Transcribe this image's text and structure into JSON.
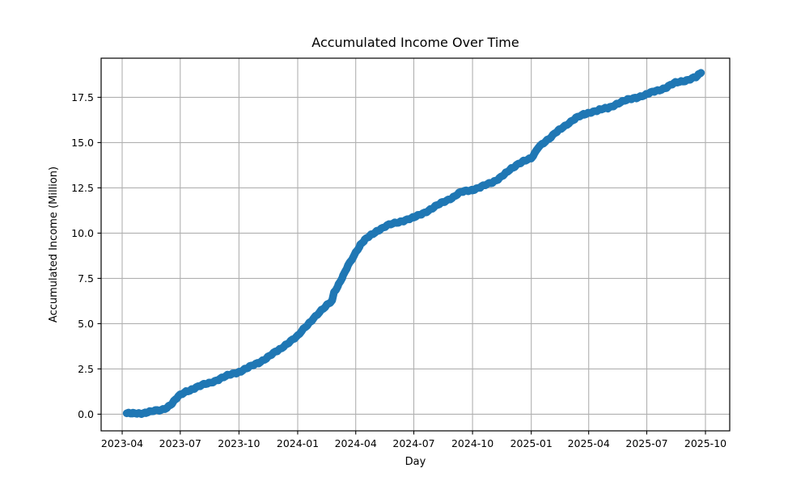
{
  "chart_data": {
    "type": "line",
    "title": "Accumulated Income Over Time",
    "xlabel": "Day",
    "ylabel": "Accumulated Income (Million)",
    "grid": true,
    "legend": "none",
    "style": {
      "line_color": "#1f77b4",
      "line_width": 9.5,
      "grid_color": "#b0b0b0",
      "axis_color": "#000000",
      "background": "#ffffff"
    },
    "x_axis": {
      "min": "2023-02-27",
      "max": "2025-11-08",
      "ticks": [
        {
          "date": "2023-04-01",
          "label": "2023-04"
        },
        {
          "date": "2023-07-01",
          "label": "2023-07"
        },
        {
          "date": "2023-10-01",
          "label": "2023-10"
        },
        {
          "date": "2024-01-01",
          "label": "2024-01"
        },
        {
          "date": "2024-04-01",
          "label": "2024-04"
        },
        {
          "date": "2024-07-01",
          "label": "2024-07"
        },
        {
          "date": "2024-10-01",
          "label": "2024-10"
        },
        {
          "date": "2025-01-01",
          "label": "2025-01"
        },
        {
          "date": "2025-04-01",
          "label": "2025-04"
        },
        {
          "date": "2025-07-01",
          "label": "2025-07"
        },
        {
          "date": "2025-10-01",
          "label": "2025-10"
        }
      ]
    },
    "y_axis": {
      "min": -0.92,
      "max": 19.66,
      "ticks": [
        {
          "value": 0.0,
          "label": "0.0"
        },
        {
          "value": 2.5,
          "label": "2.5"
        },
        {
          "value": 5.0,
          "label": "5.0"
        },
        {
          "value": 7.5,
          "label": "7.5"
        },
        {
          "value": 10.0,
          "label": "10.0"
        },
        {
          "value": 12.5,
          "label": "12.5"
        },
        {
          "value": 15.0,
          "label": "15.0"
        },
        {
          "value": 17.5,
          "label": "17.5"
        }
      ]
    },
    "series": [
      {
        "name": "Accumulated Income",
        "points": [
          [
            "2023-04-08",
            0.05
          ],
          [
            "2023-04-18",
            0.02
          ],
          [
            "2023-04-28",
            0.05
          ],
          [
            "2023-05-08",
            0.1
          ],
          [
            "2023-05-20",
            0.16
          ],
          [
            "2023-06-01",
            0.22
          ],
          [
            "2023-06-10",
            0.38
          ],
          [
            "2023-06-18",
            0.6
          ],
          [
            "2023-06-25",
            0.85
          ],
          [
            "2023-07-01",
            1.05
          ],
          [
            "2023-07-10",
            1.25
          ],
          [
            "2023-07-20",
            1.4
          ],
          [
            "2023-08-01",
            1.55
          ],
          [
            "2023-08-15",
            1.72
          ],
          [
            "2023-09-01",
            1.95
          ],
          [
            "2023-09-15",
            2.15
          ],
          [
            "2023-10-01",
            2.35
          ],
          [
            "2023-10-15",
            2.55
          ],
          [
            "2023-11-01",
            2.85
          ],
          [
            "2023-11-15",
            3.15
          ],
          [
            "2023-12-01",
            3.5
          ],
          [
            "2023-12-15",
            3.9
          ],
          [
            "2024-01-01",
            4.3
          ],
          [
            "2024-01-10",
            4.7
          ],
          [
            "2024-01-20",
            5.1
          ],
          [
            "2024-02-01",
            5.5
          ],
          [
            "2024-02-10",
            5.8
          ],
          [
            "2024-02-18",
            6.1
          ],
          [
            "2024-02-24",
            6.3
          ],
          [
            "2024-02-27",
            6.75
          ],
          [
            "2024-03-05",
            7.15
          ],
          [
            "2024-03-12",
            7.6
          ],
          [
            "2024-03-20",
            8.2
          ],
          [
            "2024-04-01",
            8.95
          ],
          [
            "2024-04-08",
            9.35
          ],
          [
            "2024-04-15",
            9.6
          ],
          [
            "2024-04-25",
            9.9
          ],
          [
            "2024-05-05",
            10.15
          ],
          [
            "2024-05-20",
            10.4
          ],
          [
            "2024-06-01",
            10.55
          ],
          [
            "2024-06-15",
            10.7
          ],
          [
            "2024-07-01",
            10.85
          ],
          [
            "2024-07-15",
            11.1
          ],
          [
            "2024-08-01",
            11.4
          ],
          [
            "2024-08-15",
            11.7
          ],
          [
            "2024-09-01",
            12.0
          ],
          [
            "2024-09-10",
            12.2
          ],
          [
            "2024-09-18",
            12.3
          ],
          [
            "2024-10-01",
            12.4
          ],
          [
            "2024-10-15",
            12.55
          ],
          [
            "2024-11-01",
            12.8
          ],
          [
            "2024-11-12",
            13.05
          ],
          [
            "2024-11-22",
            13.3
          ],
          [
            "2024-12-03",
            13.6
          ],
          [
            "2024-12-12",
            13.85
          ],
          [
            "2024-12-20",
            14.0
          ],
          [
            "2025-01-01",
            14.1
          ],
          [
            "2025-01-06",
            14.35
          ],
          [
            "2025-01-12",
            14.75
          ],
          [
            "2025-01-20",
            15.0
          ],
          [
            "2025-02-01",
            15.3
          ],
          [
            "2025-02-14",
            15.7
          ],
          [
            "2025-03-01",
            16.1
          ],
          [
            "2025-03-12",
            16.35
          ],
          [
            "2025-03-25",
            16.55
          ],
          [
            "2025-04-05",
            16.7
          ],
          [
            "2025-04-18",
            16.8
          ],
          [
            "2025-05-01",
            16.9
          ],
          [
            "2025-05-15",
            17.15
          ],
          [
            "2025-06-01",
            17.35
          ],
          [
            "2025-06-15",
            17.5
          ],
          [
            "2025-07-01",
            17.65
          ],
          [
            "2025-07-15",
            17.85
          ],
          [
            "2025-08-01",
            18.05
          ],
          [
            "2025-08-15",
            18.3
          ],
          [
            "2025-09-01",
            18.45
          ],
          [
            "2025-09-10",
            18.55
          ],
          [
            "2025-09-16",
            18.6
          ],
          [
            "2025-09-20",
            18.72
          ],
          [
            "2025-09-24",
            18.85
          ]
        ]
      }
    ]
  }
}
